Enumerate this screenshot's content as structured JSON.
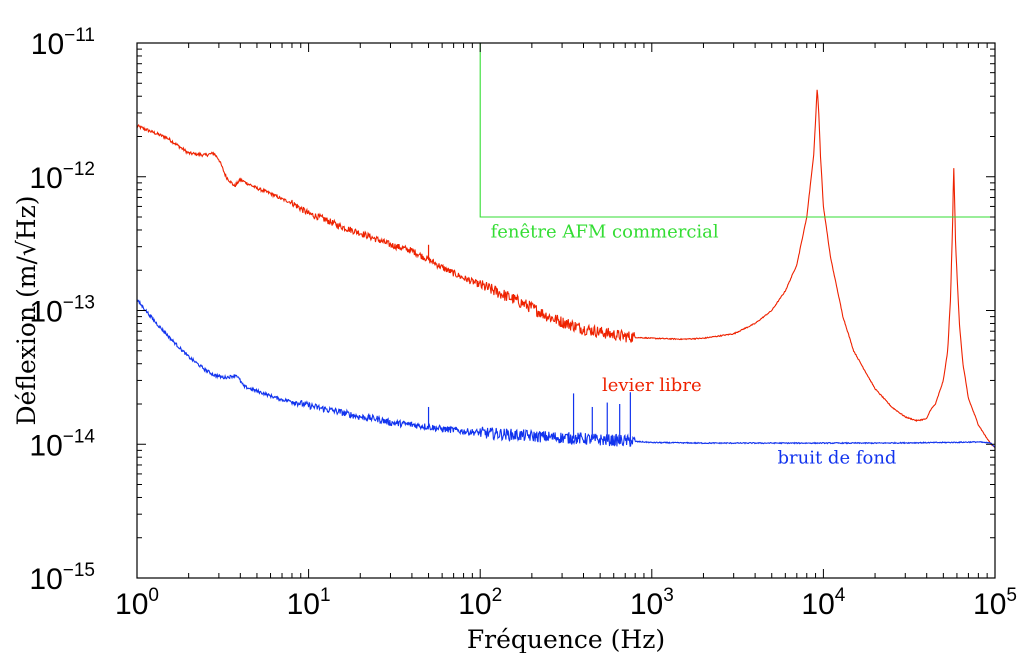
{
  "chart_data": {
    "type": "line",
    "xlabel": "Fréquence (Hz)",
    "ylabel": "Déflexion (m/√Hz)",
    "x_scale": "log",
    "y_scale": "log",
    "xlim": [
      1,
      100000
    ],
    "ylim": [
      1e-15,
      1e-11
    ],
    "grid": false,
    "x_ticks": [
      {
        "base": "10",
        "exp": "0",
        "value": 1
      },
      {
        "base": "10",
        "exp": "1",
        "value": 10
      },
      {
        "base": "10",
        "exp": "2",
        "value": 100
      },
      {
        "base": "10",
        "exp": "3",
        "value": 1000
      },
      {
        "base": "10",
        "exp": "4",
        "value": 10000
      },
      {
        "base": "10",
        "exp": "5",
        "value": 100000
      }
    ],
    "y_ticks": [
      {
        "base": "10",
        "exp": "−15",
        "value": 1e-15
      },
      {
        "base": "10",
        "exp": "−14",
        "value": 1e-14
      },
      {
        "base": "10",
        "exp": "−13",
        "value": 1e-13
      },
      {
        "base": "10",
        "exp": "−12",
        "value": 1e-12
      },
      {
        "base": "10",
        "exp": "−11",
        "value": 1e-11
      }
    ],
    "series": [
      {
        "name": "levier libre",
        "color": "#ee2200",
        "x": [
          1,
          1.5,
          2,
          2.5,
          2.8,
          3,
          3.3,
          3.7,
          4,
          5,
          6,
          7,
          8,
          10,
          12,
          15,
          20,
          25,
          30,
          40,
          50,
          60,
          70,
          80,
          100,
          130,
          160,
          200,
          250,
          300,
          400,
          500,
          600,
          700,
          800,
          1000,
          1500,
          2000,
          3000,
          4000,
          5000,
          6000,
          7000,
          8000,
          8800,
          9200,
          9400,
          9600,
          10000,
          11000,
          13000,
          15000,
          20000,
          25000,
          30000,
          35000,
          40000,
          42000,
          45000,
          50000,
          53000,
          55000,
          56500,
          57500,
          59000,
          62000,
          65000,
          70000,
          80000,
          90000,
          95000,
          100000
        ],
        "y": [
          2.4e-12,
          1.95e-12,
          1.5e-12,
          1.45e-12,
          1.5e-12,
          1.35e-12,
          1e-12,
          8.5e-13,
          9.5e-13,
          8.2e-13,
          7.5e-13,
          6.8e-13,
          6.4e-13,
          5.3e-13,
          4.9e-13,
          4.3e-13,
          3.8e-13,
          3.4e-13,
          3.1e-13,
          2.8e-13,
          2.4e-13,
          2.1e-13,
          1.9e-13,
          1.75e-13,
          1.55e-13,
          1.35e-13,
          1.2e-13,
          1.05e-13,
          9e-14,
          8.2e-14,
          7.3e-14,
          6.9e-14,
          6.6e-14,
          6.4e-14,
          6.3e-14,
          6.2e-14,
          6.1e-14,
          6.2e-14,
          6.7e-14,
          8e-14,
          1e-13,
          1.4e-13,
          2.2e-13,
          5e-13,
          1.5e-12,
          4.6e-12,
          3e-12,
          1.5e-12,
          6e-13,
          2.5e-13,
          9e-14,
          5e-14,
          2.6e-14,
          1.9e-14,
          1.6e-14,
          1.5e-14,
          1.55e-14,
          1.8e-14,
          2e-14,
          3e-14,
          5e-14,
          1.2e-13,
          4e-13,
          1.22e-12,
          3e-13,
          8e-14,
          4e-14,
          2.2e-14,
          1.4e-14,
          1.1e-14,
          1e-14,
          9.5e-15
        ]
      },
      {
        "name": "bruit de fond",
        "color": "#1133ee",
        "x": [
          1,
          1.3,
          1.6,
          2,
          2.5,
          2.8,
          3.2,
          3.5,
          3.8,
          4.2,
          5,
          6,
          7,
          8,
          10,
          12,
          15,
          20,
          25,
          30,
          40,
          50,
          60,
          70,
          80,
          100,
          150,
          200,
          300,
          400,
          500,
          600,
          700,
          800,
          1000,
          2000,
          5000,
          10000,
          20000,
          50000,
          80000,
          95000,
          100000
        ],
        "y": [
          1.2e-13,
          8e-14,
          6e-14,
          4.5e-14,
          3.6e-14,
          3.3e-14,
          3.15e-14,
          3.2e-14,
          3.3e-14,
          2.7e-14,
          2.5e-14,
          2.3e-14,
          2.15e-14,
          2.1e-14,
          1.95e-14,
          1.85e-14,
          1.75e-14,
          1.6e-14,
          1.55e-14,
          1.45e-14,
          1.4e-14,
          1.35e-14,
          1.3e-14,
          1.28e-14,
          1.25e-14,
          1.22e-14,
          1.18e-14,
          1.15e-14,
          1.12e-14,
          1.1e-14,
          1.08e-14,
          1.07e-14,
          1.06e-14,
          1.05e-14,
          1.03e-14,
          1.02e-14,
          1.02e-14,
          1.02e-14,
          1.02e-14,
          1.03e-14,
          1.04e-14,
          1.02e-14,
          9.5e-15
        ]
      },
      {
        "name": "fenêtre AFM commercial",
        "color": "#33dd33",
        "x": [
          100,
          100,
          100000
        ],
        "y": [
          1e-11,
          5e-13,
          5e-13
        ]
      }
    ],
    "spikes": [
      {
        "series": "levier libre",
        "x": 50,
        "base": 2.4e-13,
        "top": 3.1e-13
      },
      {
        "series": "bruit de fond",
        "x": 50,
        "base": 1.35e-14,
        "top": 1.9e-14
      },
      {
        "series": "bruit de fond",
        "x": 350,
        "base": 1.1e-14,
        "top": 2.4e-14
      },
      {
        "series": "bruit de fond",
        "x": 450,
        "base": 1.08e-14,
        "top": 1.9e-14
      },
      {
        "series": "bruit de fond",
        "x": 550,
        "base": 1.07e-14,
        "top": 2.05e-14
      },
      {
        "series": "bruit de fond",
        "x": 650,
        "base": 1.06e-14,
        "top": 2e-14
      },
      {
        "series": "bruit de fond",
        "x": 750,
        "base": 1.05e-14,
        "top": 2.45e-14
      }
    ],
    "annotations": [
      {
        "text": "fenêtre AFM commercial",
        "x": 115,
        "y": 3.5e-13,
        "color": "#33dd33"
      },
      {
        "text": "levier libre",
        "x": 1000,
        "y": 2.5e-14,
        "color": "#ee2200",
        "anchor": "middle"
      },
      {
        "text": "bruit de fond",
        "x": 12000,
        "y": 7.2e-15,
        "color": "#1133ee",
        "anchor": "middle"
      }
    ]
  }
}
